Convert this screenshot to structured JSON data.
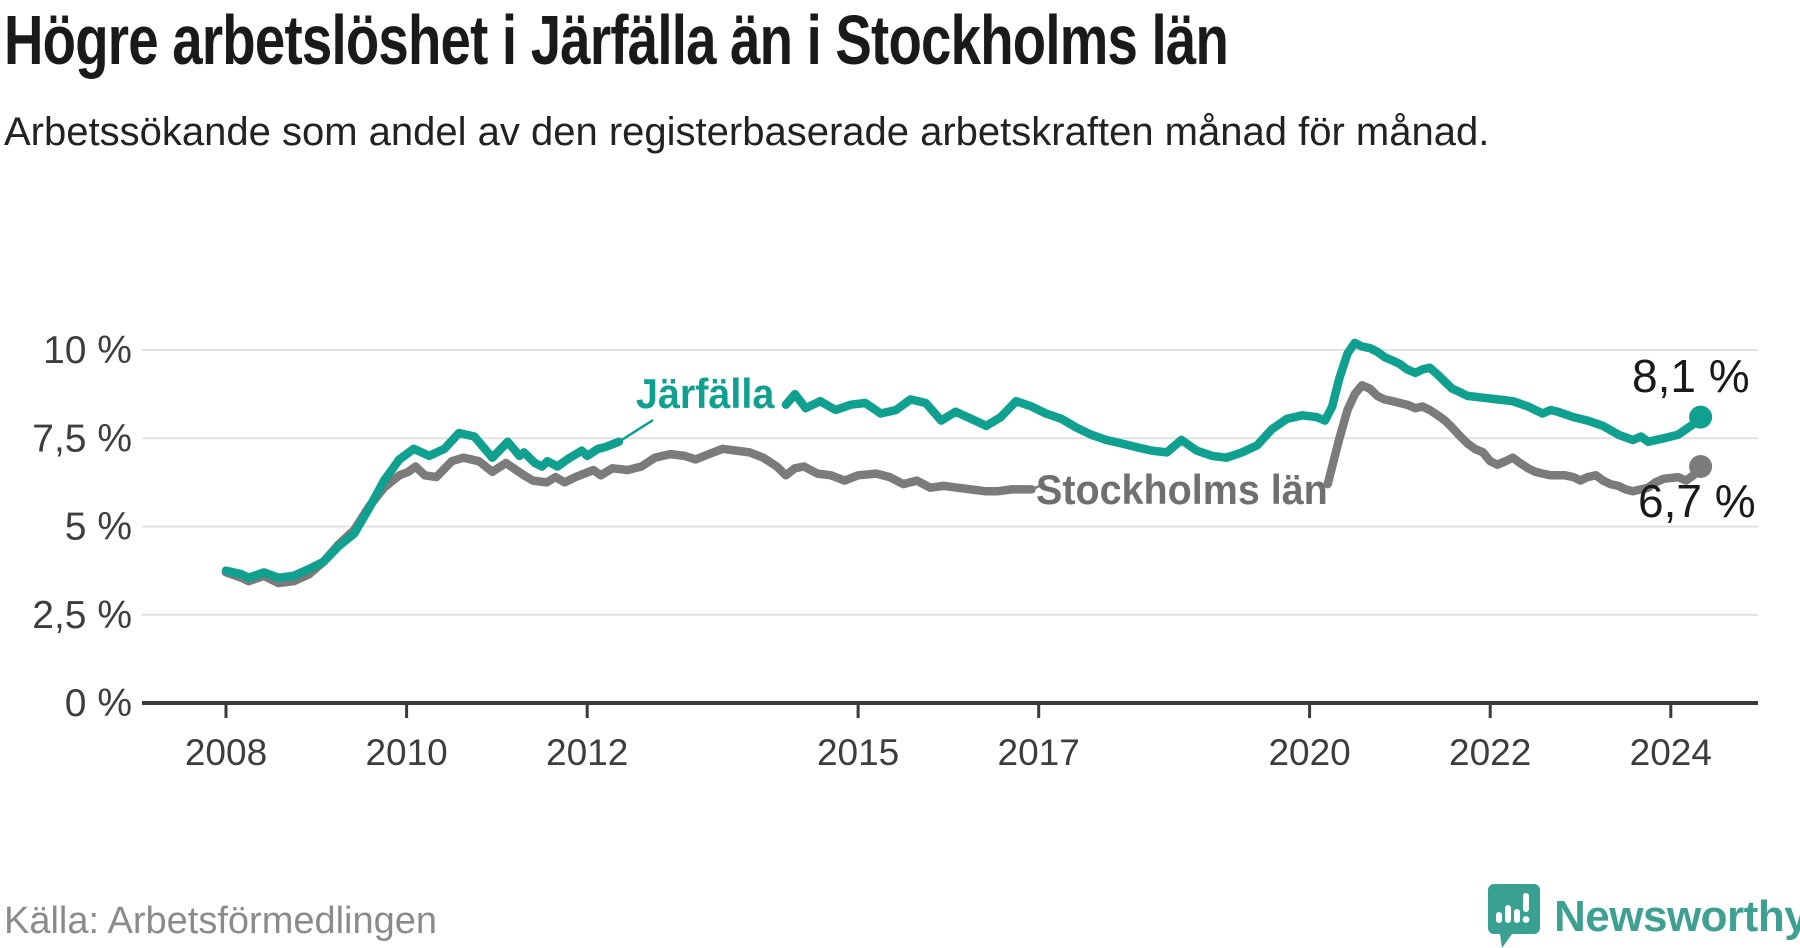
{
  "header": {
    "title": "Högre arbetslöshet i Järfälla än i Stockholms län",
    "subtitle": "Arbetssökande som andel av den registerbaserade arbetskraften månad för månad."
  },
  "footer": {
    "source": "Källa: Arbetsförmedlingen",
    "brand": {
      "name": "Newsworthy",
      "icon": "newsworthy-speech-bubble-bar-chart-icon",
      "color": "#3ea091"
    }
  },
  "chart_data": {
    "type": "line",
    "title": "Högre arbetslöshet i Järfälla än i Stockholms län",
    "subtitle": "Arbetssökande som andel av den registerbaserade arbetskraften månad för månad.",
    "source": "Källa: Arbetsförmedlingen",
    "unit": "%",
    "grid": true,
    "legend_position": "inline-labels",
    "xlim": [
      2008,
      2024.6
    ],
    "ylim": [
      0,
      10.5
    ],
    "yticks": [
      0,
      2.5,
      5,
      7.5,
      10
    ],
    "ytick_labels": [
      "0 %",
      "2,5 %",
      "5 %",
      "7,5 %",
      "10 %"
    ],
    "xticks": [
      2008,
      2010,
      2012,
      2015,
      2017,
      2020,
      2022,
      2024
    ],
    "xtick_labels": [
      "2008",
      "2010",
      "2012",
      "2015",
      "2017",
      "2020",
      "2022",
      "2024"
    ],
    "axis_color": "#3a3a3a",
    "grid_color": "#e1e1e1",
    "series": [
      {
        "name": "Järfälla",
        "slug": "jarfalla",
        "color": "#10a090",
        "end_label": "8,1 %",
        "end_value": 8.1,
        "leader": [
          [
            2012.35,
            7.4
          ],
          [
            2012.72,
            8.0
          ]
        ],
        "segments": [
          [
            [
              2008.0,
              3.75
            ],
            [
              2008.17,
              3.65
            ],
            [
              2008.25,
              3.55
            ],
            [
              2008.42,
              3.7
            ],
            [
              2008.58,
              3.55
            ],
            [
              2008.75,
              3.6
            ],
            [
              2008.92,
              3.8
            ],
            [
              2009.08,
              4.0
            ],
            [
              2009.25,
              4.45
            ],
            [
              2009.42,
              4.8
            ],
            [
              2009.58,
              5.5
            ],
            [
              2009.75,
              6.3
            ],
            [
              2009.92,
              6.9
            ],
            [
              2010.08,
              7.2
            ],
            [
              2010.25,
              7.0
            ],
            [
              2010.42,
              7.2
            ],
            [
              2010.58,
              7.65
            ],
            [
              2010.75,
              7.55
            ],
            [
              2010.95,
              6.95
            ],
            [
              2011.12,
              7.4
            ],
            [
              2011.25,
              7.0
            ],
            [
              2011.3,
              7.1
            ],
            [
              2011.42,
              6.8
            ],
            [
              2011.5,
              6.7
            ],
            [
              2011.56,
              6.85
            ],
            [
              2011.67,
              6.7
            ],
            [
              2011.78,
              6.9
            ],
            [
              2011.94,
              7.15
            ],
            [
              2012.0,
              7.0
            ],
            [
              2012.12,
              7.2
            ],
            [
              2012.2,
              7.25
            ],
            [
              2012.35,
              7.4
            ]
          ],
          [
            [
              2014.2,
              8.45
            ],
            [
              2014.3,
              8.75
            ],
            [
              2014.42,
              8.35
            ],
            [
              2014.58,
              8.55
            ],
            [
              2014.75,
              8.3
            ],
            [
              2014.92,
              8.45
            ],
            [
              2015.08,
              8.5
            ],
            [
              2015.25,
              8.2
            ],
            [
              2015.42,
              8.3
            ],
            [
              2015.58,
              8.6
            ],
            [
              2015.75,
              8.5
            ],
            [
              2015.92,
              8.0
            ],
            [
              2016.08,
              8.25
            ],
            [
              2016.25,
              8.05
            ],
            [
              2016.42,
              7.85
            ],
            [
              2016.58,
              8.1
            ],
            [
              2016.75,
              8.55
            ],
            [
              2016.92,
              8.4
            ],
            [
              2017.08,
              8.2
            ],
            [
              2017.25,
              8.05
            ],
            [
              2017.42,
              7.8
            ],
            [
              2017.58,
              7.6
            ],
            [
              2017.75,
              7.45
            ],
            [
              2017.92,
              7.35
            ],
            [
              2018.08,
              7.25
            ],
            [
              2018.25,
              7.15
            ],
            [
              2018.42,
              7.1
            ],
            [
              2018.58,
              7.45
            ],
            [
              2018.75,
              7.15
            ],
            [
              2018.92,
              7.0
            ],
            [
              2019.08,
              6.95
            ],
            [
              2019.25,
              7.1
            ],
            [
              2019.42,
              7.3
            ],
            [
              2019.58,
              7.75
            ],
            [
              2019.75,
              8.05
            ],
            [
              2019.92,
              8.15
            ],
            [
              2020.08,
              8.1
            ],
            [
              2020.17,
              8.0
            ],
            [
              2020.25,
              8.4
            ],
            [
              2020.33,
              9.2
            ],
            [
              2020.42,
              9.9
            ],
            [
              2020.5,
              10.2
            ],
            [
              2020.58,
              10.1
            ],
            [
              2020.67,
              10.05
            ],
            [
              2020.75,
              9.95
            ],
            [
              2020.83,
              9.8
            ],
            [
              2020.92,
              9.7
            ],
            [
              2021.0,
              9.6
            ],
            [
              2021.08,
              9.45
            ],
            [
              2021.17,
              9.35
            ],
            [
              2021.25,
              9.45
            ],
            [
              2021.33,
              9.5
            ],
            [
              2021.42,
              9.3
            ],
            [
              2021.5,
              9.1
            ],
            [
              2021.58,
              8.9
            ],
            [
              2021.67,
              8.8
            ],
            [
              2021.75,
              8.7
            ],
            [
              2021.92,
              8.65
            ],
            [
              2022.08,
              8.6
            ],
            [
              2022.25,
              8.55
            ],
            [
              2022.42,
              8.4
            ],
            [
              2022.58,
              8.2
            ],
            [
              2022.67,
              8.3
            ],
            [
              2022.75,
              8.25
            ],
            [
              2022.92,
              8.1
            ],
            [
              2023.08,
              8.0
            ],
            [
              2023.25,
              7.85
            ],
            [
              2023.42,
              7.6
            ],
            [
              2023.58,
              7.45
            ],
            [
              2023.67,
              7.55
            ],
            [
              2023.75,
              7.4
            ],
            [
              2023.92,
              7.5
            ],
            [
              2024.08,
              7.6
            ],
            [
              2024.25,
              7.9
            ],
            [
              2024.33,
              8.1
            ]
          ]
        ]
      },
      {
        "name": "Stockholms län",
        "slug": "stockholms-lan",
        "color": "#7b7b7b",
        "end_label": "6,7 %",
        "end_value": 6.7,
        "leader": [
          [
            2016.92,
            6.05
          ],
          [
            2017.06,
            6.2
          ]
        ],
        "segments": [
          [
            [
              2008.0,
              3.7
            ],
            [
              2008.17,
              3.55
            ],
            [
              2008.25,
              3.45
            ],
            [
              2008.42,
              3.6
            ],
            [
              2008.58,
              3.4
            ],
            [
              2008.75,
              3.45
            ],
            [
              2008.92,
              3.65
            ],
            [
              2009.08,
              4.0
            ],
            [
              2009.25,
              4.5
            ],
            [
              2009.42,
              4.9
            ],
            [
              2009.58,
              5.55
            ],
            [
              2009.75,
              6.1
            ],
            [
              2009.92,
              6.45
            ],
            [
              2010.02,
              6.55
            ],
            [
              2010.1,
              6.7
            ],
            [
              2010.2,
              6.45
            ],
            [
              2010.33,
              6.4
            ],
            [
              2010.5,
              6.85
            ],
            [
              2010.63,
              6.95
            ],
            [
              2010.8,
              6.85
            ],
            [
              2010.95,
              6.55
            ],
            [
              2011.1,
              6.8
            ],
            [
              2011.3,
              6.45
            ],
            [
              2011.4,
              6.3
            ],
            [
              2011.55,
              6.25
            ],
            [
              2011.65,
              6.4
            ],
            [
              2011.75,
              6.25
            ],
            [
              2011.87,
              6.4
            ],
            [
              2011.97,
              6.5
            ],
            [
              2012.07,
              6.6
            ],
            [
              2012.15,
              6.45
            ],
            [
              2012.28,
              6.65
            ],
            [
              2012.45,
              6.6
            ],
            [
              2012.6,
              6.7
            ],
            [
              2012.75,
              6.95
            ],
            [
              2012.92,
              7.05
            ],
            [
              2013.08,
              7.0
            ],
            [
              2013.2,
              6.9
            ],
            [
              2013.35,
              7.05
            ],
            [
              2013.5,
              7.2
            ],
            [
              2013.65,
              7.15
            ],
            [
              2013.8,
              7.1
            ],
            [
              2013.95,
              6.95
            ],
            [
              2014.1,
              6.7
            ],
            [
              2014.2,
              6.45
            ],
            [
              2014.3,
              6.65
            ],
            [
              2014.4,
              6.7
            ],
            [
              2014.55,
              6.5
            ],
            [
              2014.7,
              6.45
            ],
            [
              2014.85,
              6.3
            ],
            [
              2015.0,
              6.45
            ],
            [
              2015.2,
              6.5
            ],
            [
              2015.35,
              6.4
            ],
            [
              2015.5,
              6.2
            ],
            [
              2015.65,
              6.3
            ],
            [
              2015.8,
              6.1
            ],
            [
              2015.95,
              6.15
            ],
            [
              2016.1,
              6.1
            ],
            [
              2016.25,
              6.05
            ],
            [
              2016.4,
              6.0
            ],
            [
              2016.55,
              6.0
            ],
            [
              2016.7,
              6.05
            ],
            [
              2016.92,
              6.05
            ]
          ],
          [
            [
              2020.2,
              6.2
            ],
            [
              2020.25,
              6.7
            ],
            [
              2020.33,
              7.5
            ],
            [
              2020.42,
              8.3
            ],
            [
              2020.5,
              8.75
            ],
            [
              2020.58,
              9.0
            ],
            [
              2020.67,
              8.9
            ],
            [
              2020.75,
              8.7
            ],
            [
              2020.83,
              8.6
            ],
            [
              2020.92,
              8.55
            ],
            [
              2021.0,
              8.5
            ],
            [
              2021.08,
              8.45
            ],
            [
              2021.17,
              8.35
            ],
            [
              2021.25,
              8.4
            ],
            [
              2021.33,
              8.3
            ],
            [
              2021.42,
              8.15
            ],
            [
              2021.5,
              8.0
            ],
            [
              2021.58,
              7.8
            ],
            [
              2021.67,
              7.55
            ],
            [
              2021.75,
              7.35
            ],
            [
              2021.83,
              7.2
            ],
            [
              2021.92,
              7.1
            ],
            [
              2022.0,
              6.85
            ],
            [
              2022.08,
              6.75
            ],
            [
              2022.17,
              6.85
            ],
            [
              2022.25,
              6.95
            ],
            [
              2022.33,
              6.8
            ],
            [
              2022.42,
              6.65
            ],
            [
              2022.5,
              6.55
            ],
            [
              2022.58,
              6.5
            ],
            [
              2022.67,
              6.45
            ],
            [
              2022.83,
              6.45
            ],
            [
              2022.92,
              6.4
            ],
            [
              2023.0,
              6.3
            ],
            [
              2023.08,
              6.4
            ],
            [
              2023.17,
              6.45
            ],
            [
              2023.25,
              6.3
            ],
            [
              2023.33,
              6.2
            ],
            [
              2023.42,
              6.15
            ],
            [
              2023.5,
              6.05
            ],
            [
              2023.58,
              6.0
            ],
            [
              2023.67,
              6.05
            ],
            [
              2023.75,
              6.1
            ],
            [
              2023.83,
              6.25
            ],
            [
              2023.92,
              6.35
            ],
            [
              2024.08,
              6.4
            ],
            [
              2024.17,
              6.3
            ],
            [
              2024.25,
              6.45
            ],
            [
              2024.33,
              6.7
            ]
          ]
        ]
      }
    ]
  }
}
